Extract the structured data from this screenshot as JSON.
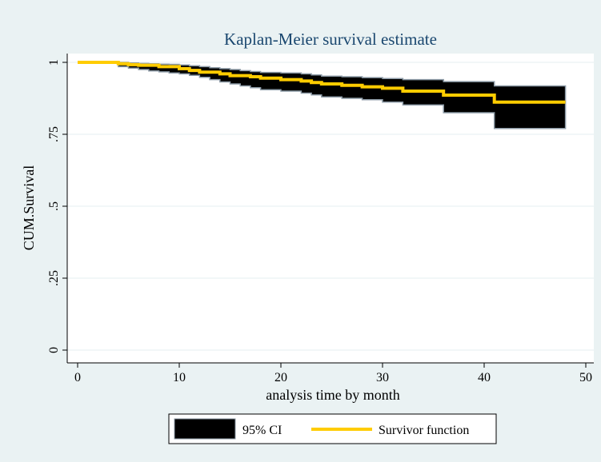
{
  "chart_data": {
    "type": "line",
    "title": "Kaplan-Meier survival estimate",
    "xlabel": "analysis time by month",
    "ylabel": "CUM.Survival",
    "xlim": [
      0,
      50
    ],
    "ylim": [
      0,
      1
    ],
    "x_ticks": [
      0,
      10,
      20,
      30,
      40,
      50
    ],
    "x_tick_labels": [
      "0",
      "10",
      "20",
      "30",
      "40",
      "50"
    ],
    "y_ticks": [
      0,
      0.25,
      0.5,
      0.75,
      1
    ],
    "y_tick_labels": [
      "0",
      ".25",
      ".5",
      ".75",
      "1"
    ],
    "grid": true,
    "legend_position": "bottom",
    "colors": {
      "outer_background": "#eaf2f3",
      "plot_background": "#ffffff",
      "title": "#1a476f",
      "ci_fill": "#000000",
      "ci_edge": "#8c9aa6",
      "survivor_line": "#ffcc00",
      "grid": "#eaf2f3"
    },
    "series": [
      {
        "name": "95% CI",
        "kind": "band",
        "x": [
          4,
          5,
          6,
          7,
          8,
          9,
          10,
          11,
          12,
          13,
          14,
          15,
          16,
          17,
          18,
          20,
          22,
          23,
          24,
          26,
          28,
          30,
          32,
          36,
          41,
          48
        ],
        "lower": [
          0.985,
          0.98,
          0.975,
          0.97,
          0.967,
          0.963,
          0.96,
          0.955,
          0.948,
          0.94,
          0.932,
          0.925,
          0.918,
          0.912,
          0.905,
          0.9,
          0.893,
          0.887,
          0.88,
          0.875,
          0.87,
          0.862,
          0.852,
          0.825,
          0.77,
          0.77
        ],
        "upper": [
          1.0,
          0.998,
          0.996,
          0.995,
          0.994,
          0.993,
          0.991,
          0.988,
          0.985,
          0.981,
          0.978,
          0.975,
          0.971,
          0.968,
          0.965,
          0.963,
          0.96,
          0.956,
          0.952,
          0.95,
          0.947,
          0.944,
          0.94,
          0.933,
          0.918,
          0.918
        ]
      },
      {
        "name": "Survivor function",
        "kind": "step",
        "x": [
          0,
          4,
          5,
          6,
          8,
          10,
          11,
          12,
          14,
          15,
          17,
          18,
          20,
          22,
          23,
          24,
          26,
          28,
          30,
          32,
          36,
          41,
          48
        ],
        "y": [
          1.0,
          0.995,
          0.992,
          0.99,
          0.985,
          0.978,
          0.972,
          0.966,
          0.96,
          0.954,
          0.95,
          0.945,
          0.94,
          0.935,
          0.93,
          0.925,
          0.92,
          0.915,
          0.91,
          0.9,
          0.886,
          0.862,
          0.862
        ]
      }
    ]
  }
}
